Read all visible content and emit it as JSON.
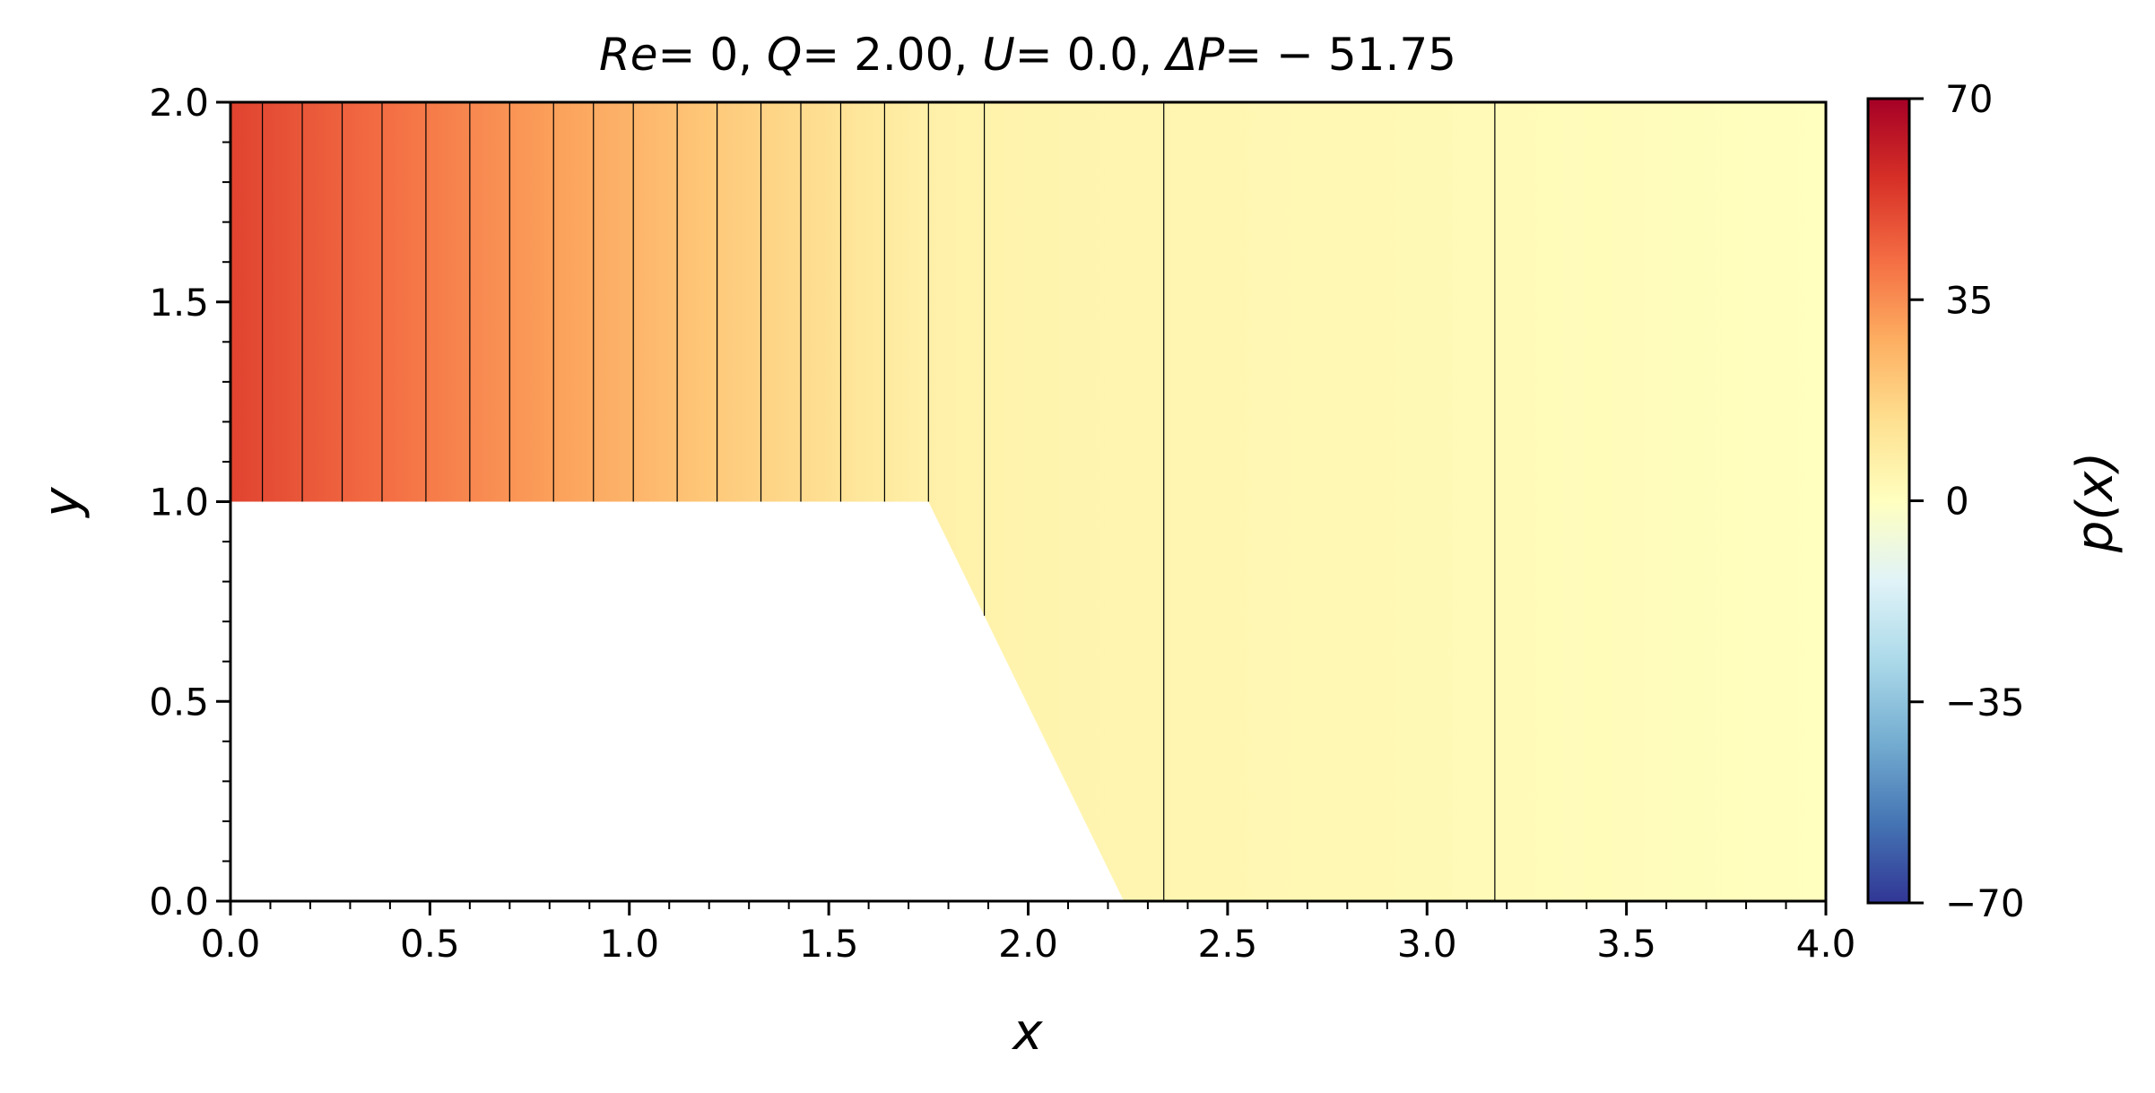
{
  "chart_data": {
    "type": "heatmap",
    "title_parts": {
      "re_label": "Re",
      "re_value": "= 0, ",
      "q_label": "Q",
      "q_value": "= 2.00, ",
      "u_label": "U",
      "u_value": "= 0.0, ",
      "dp_label": "ΔP",
      "dp_value": "= − 51.75"
    },
    "xlabel": "x",
    "ylabel": "y",
    "xlim": [
      0.0,
      4.0
    ],
    "ylim": [
      0.0,
      2.0
    ],
    "x_ticks": [
      0.0,
      0.5,
      1.0,
      1.5,
      2.0,
      2.5,
      3.0,
      3.5,
      4.0
    ],
    "x_tick_labels": [
      "0.0",
      "0.5",
      "1.0",
      "1.5",
      "2.0",
      "2.5",
      "3.0",
      "3.5",
      "4.0"
    ],
    "y_ticks": [
      0.0,
      0.5,
      1.0,
      1.5,
      2.0
    ],
    "y_tick_labels": [
      "0.0",
      "0.5",
      "1.0",
      "1.5",
      "2.0"
    ],
    "colorbar": {
      "label": "p(x)",
      "range": [
        -70,
        70
      ],
      "ticks": [
        70,
        35,
        0,
        -35,
        -70
      ],
      "tick_labels": [
        "70",
        "35",
        "0",
        "−35",
        "−70"
      ],
      "colormap": "RdYlBu_r",
      "stops": [
        {
          "value": -70,
          "color": "#313695"
        },
        {
          "value": -56,
          "color": "#4575b4"
        },
        {
          "value": -42,
          "color": "#74add1"
        },
        {
          "value": -28,
          "color": "#abd9e9"
        },
        {
          "value": -14,
          "color": "#e0f3f8"
        },
        {
          "value": 0,
          "color": "#ffffbf"
        },
        {
          "value": 14,
          "color": "#fee090"
        },
        {
          "value": 28,
          "color": "#fdae61"
        },
        {
          "value": 42,
          "color": "#f46d43"
        },
        {
          "value": 56,
          "color": "#d73027"
        },
        {
          "value": 70,
          "color": "#a50026"
        }
      ]
    },
    "domain_boundary": {
      "step_height": 1.0,
      "step_start_x": 1.75,
      "step_end_x": 2.24
    },
    "pressure_profile_x": [
      0.0,
      0.4,
      0.8,
      1.2,
      1.6,
      1.75,
      1.9,
      2.1,
      2.3,
      2.6,
      3.0,
      3.5,
      4.0
    ],
    "pressure_profile_p": [
      51.75,
      41.5,
      31.2,
      20.8,
      10.5,
      6.6,
      5.6,
      4.9,
      4.4,
      3.6,
      2.6,
      1.3,
      0.0
    ],
    "contour_x": [
      0.08,
      0.18,
      0.28,
      0.38,
      0.49,
      0.6,
      0.7,
      0.81,
      0.91,
      1.01,
      1.12,
      1.22,
      1.33,
      1.43,
      1.53,
      1.64,
      1.75,
      1.89,
      2.34,
      3.17
    ]
  }
}
